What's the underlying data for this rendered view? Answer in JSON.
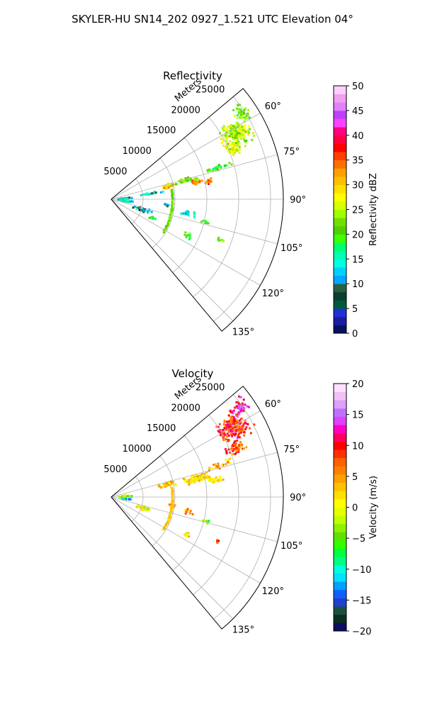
{
  "figure_title": "SKYLER-HU  SN14_202  0927_1.521 UTC Elevation 04°",
  "chart_data": [
    {
      "type": "heatmap",
      "subtype": "polar-radar-sector",
      "title": "Reflectivity",
      "radial_label": "Meters",
      "r_ticks": [
        5000,
        10000,
        15000,
        20000,
        25000
      ],
      "r_tick_labels": [
        "5000",
        "10000",
        "15000",
        "20000",
        "25000"
      ],
      "rlim": [
        0,
        27000
      ],
      "theta_ticks": [
        60,
        75,
        90,
        105,
        120,
        135
      ],
      "theta_tick_labels": [
        "60°",
        "75°",
        "90°",
        "105°",
        "120°",
        "135°"
      ],
      "theta_range_deg": [
        50,
        140
      ],
      "grid": true,
      "colorbar": {
        "label": "Reflectivity dBZ",
        "range": [
          0,
          50
        ],
        "ticks": [
          0,
          5,
          10,
          15,
          20,
          25,
          30,
          35,
          40,
          45,
          50
        ],
        "tick_labels": [
          "0",
          "5",
          "10",
          "15",
          "20",
          "25",
          "30",
          "35",
          "40",
          "45",
          "50"
        ],
        "colors": [
          "#0a1060",
          "#1c1ea0",
          "#2030d8",
          "#005a3c",
          "#0a4030",
          "#2a6040",
          "#00a8ff",
          "#00d0ff",
          "#00ffe0",
          "#00ffb0",
          "#00ff70",
          "#40ff00",
          "#50d000",
          "#70e000",
          "#a0ff00",
          "#d8ff00",
          "#ffff00",
          "#ffe000",
          "#ffc000",
          "#ffa000",
          "#ff7000",
          "#ff4000",
          "#ff0000",
          "#ff0040",
          "#ff0080",
          "#ff40ff",
          "#c040ff",
          "#e080ff",
          "#f0a0f0",
          "#ffd0ff"
        ]
      },
      "echoes": [
        {
          "theta": 62,
          "r": 22000,
          "dth": 7,
          "dr": 3500,
          "value": 25,
          "density": 0.7
        },
        {
          "theta": 57,
          "r": 24500,
          "dth": 5,
          "dr": 2000,
          "value": 22,
          "density": 0.5
        },
        {
          "theta": 67,
          "r": 20500,
          "dth": 4,
          "dr": 2000,
          "value": 26,
          "density": 0.5
        },
        {
          "theta": 76,
          "r": 9000,
          "dth": 3,
          "dr": 1500,
          "value": 30,
          "density": 0.7
        },
        {
          "theta": 75,
          "r": 12000,
          "dth": 3,
          "dr": 3000,
          "value": 22,
          "density": 0.6
        },
        {
          "theta": 78,
          "r": 13500,
          "dth": 2.5,
          "dr": 1200,
          "value": 34,
          "density": 0.7
        },
        {
          "theta": 79,
          "r": 15500,
          "dth": 2,
          "dr": 1200,
          "value": 33,
          "density": 0.6
        },
        {
          "theta": 73,
          "r": 17500,
          "dth": 2,
          "dr": 3000,
          "value": 20,
          "density": 0.5
        },
        {
          "theta": 80,
          "r": 6000,
          "dth": 2,
          "dr": 2500,
          "value": 13,
          "density": 0.5
        },
        {
          "theta": 83,
          "r": 2000,
          "dth": 6,
          "dr": 1600,
          "value": 12,
          "density": 0.5
        },
        {
          "theta": 94,
          "r": 2200,
          "dth": 3,
          "dr": 1500,
          "value": 14,
          "density": 0.5
        },
        {
          "theta": 95,
          "r": 8500,
          "dth": 2,
          "dr": 800,
          "value": 10,
          "density": 0.4
        },
        {
          "theta": 107,
          "r": 5000,
          "dth": 5,
          "dr": 1800,
          "value": 11,
          "density": 0.4
        },
        {
          "theta": 113,
          "r": 7000,
          "dth": 3,
          "dr": 800,
          "value": 20,
          "density": 0.4
        },
        {
          "theta": 100,
          "r": 12000,
          "dth": 3,
          "dr": 2000,
          "value": 14,
          "density": 0.3
        },
        {
          "theta": 103,
          "r": 15000,
          "dth": 2,
          "dr": 1000,
          "value": 20,
          "density": 0.4
        },
        {
          "theta": 110,
          "r": 18000,
          "dth": 2,
          "dr": 800,
          "value": 22,
          "density": 0.4
        },
        {
          "theta": 115,
          "r": 13000,
          "dth": 3,
          "dr": 1000,
          "value": 20,
          "density": 0.4
        }
      ],
      "ring_echo": {
        "r": 9500,
        "theta_from": 80,
        "theta_to": 122,
        "value": 22
      }
    },
    {
      "type": "heatmap",
      "subtype": "polar-radar-sector",
      "title": "Velocity",
      "radial_label": "Meters",
      "r_ticks": [
        5000,
        10000,
        15000,
        20000,
        25000
      ],
      "r_tick_labels": [
        "5000",
        "10000",
        "15000",
        "20000",
        "25000"
      ],
      "rlim": [
        0,
        27000
      ],
      "theta_ticks": [
        60,
        75,
        90,
        105,
        120,
        135
      ],
      "theta_tick_labels": [
        "60°",
        "75°",
        "90°",
        "105°",
        "120°",
        "135°"
      ],
      "theta_range_deg": [
        50,
        140
      ],
      "grid": true,
      "colorbar": {
        "label": "Velocity (m/s)",
        "range": [
          -20,
          20
        ],
        "ticks": [
          -20,
          -15,
          -10,
          -5,
          0,
          5,
          10,
          15,
          20
        ],
        "tick_labels": [
          "−20",
          "−15",
          "−10",
          "−5",
          "0",
          "5",
          "10",
          "15",
          "20"
        ],
        "colors": [
          "#0a1060",
          "#0a3020",
          "#1a5040",
          "#2040d0",
          "#1060ff",
          "#00a0ff",
          "#00e0ff",
          "#00ffe0",
          "#00ff80",
          "#00ff40",
          "#30ff00",
          "#60e000",
          "#90f000",
          "#c0ff00",
          "#e8ff00",
          "#ffff00",
          "#ffe000",
          "#ffc000",
          "#ffa000",
          "#ff8000",
          "#ff6000",
          "#ff3000",
          "#ff0000",
          "#ff0060",
          "#ff00c0",
          "#e040ff",
          "#c070ff",
          "#e0a0ff",
          "#f0c0f8",
          "#ffe0ff"
        ]
      },
      "echoes": [
        {
          "theta": 60,
          "r": 22000,
          "dth": 7,
          "dr": 3500,
          "value": 9,
          "density": 0.8
        },
        {
          "theta": 55,
          "r": 24500,
          "dth": 4,
          "dr": 2000,
          "value": 12,
          "density": 0.7
        },
        {
          "theta": 68,
          "r": 21000,
          "dth": 4,
          "dr": 2200,
          "value": 7,
          "density": 0.6
        },
        {
          "theta": 76,
          "r": 9000,
          "dth": 3,
          "dr": 2000,
          "value": 3,
          "density": 0.7
        },
        {
          "theta": 77,
          "r": 13500,
          "dth": 4,
          "dr": 3000,
          "value": 2,
          "density": 0.7
        },
        {
          "theta": 80,
          "r": 16500,
          "dth": 2.5,
          "dr": 2000,
          "value": 1,
          "density": 0.5
        },
        {
          "theta": 73,
          "r": 17500,
          "dth": 2,
          "dr": 3000,
          "value": 4,
          "density": 0.4
        },
        {
          "theta": 82,
          "r": 2000,
          "dth": 5,
          "dr": 1500,
          "value": -3,
          "density": 0.5
        },
        {
          "theta": 94,
          "r": 2200,
          "dth": 2,
          "dr": 1500,
          "value": -10,
          "density": 0.5
        },
        {
          "theta": 97,
          "r": 9500,
          "dth": 2,
          "dr": 1200,
          "value": 7,
          "density": 0.4
        },
        {
          "theta": 108,
          "r": 5000,
          "dth": 5,
          "dr": 1800,
          "value": 0,
          "density": 0.4
        },
        {
          "theta": 100,
          "r": 12000,
          "dth": 3,
          "dr": 1500,
          "value": 4,
          "density": 0.3
        },
        {
          "theta": 104,
          "r": 15000,
          "dth": 2,
          "dr": 1000,
          "value": -4,
          "density": 0.4
        },
        {
          "theta": 112,
          "r": 18000,
          "dth": 2,
          "dr": 800,
          "value": 10,
          "density": 0.4
        },
        {
          "theta": 116,
          "r": 13000,
          "dth": 3,
          "dr": 1000,
          "value": 1,
          "density": 0.3
        }
      ],
      "ring_echo": {
        "r": 9500,
        "theta_from": 80,
        "theta_to": 122,
        "value": 3
      }
    }
  ]
}
